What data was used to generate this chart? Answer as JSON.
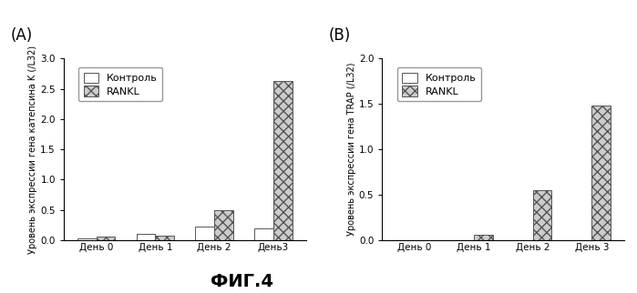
{
  "panel_A": {
    "title": "(A)",
    "ylabel": "Уровень экспрессии гена катепсина K (/L32)",
    "categories": [
      "День 0",
      "День 1",
      "День 2",
      "День3"
    ],
    "control_values": [
      0.03,
      0.1,
      0.22,
      0.19
    ],
    "rankl_values": [
      0.06,
      0.08,
      0.5,
      2.63
    ],
    "ylim": [
      0,
      3.0
    ],
    "yticks": [
      0.0,
      0.5,
      1.0,
      1.5,
      2.0,
      2.5,
      3.0
    ]
  },
  "panel_B": {
    "title": "(B)",
    "ylabel": "Уровень экспрессии гена TRAP (/L32)",
    "categories": [
      "День 0",
      "День 1",
      "День 2",
      "День 3"
    ],
    "control_values": [
      0.0,
      0.0,
      0.0,
      0.0
    ],
    "rankl_values": [
      0.0,
      0.06,
      0.55,
      1.48
    ],
    "ylim": [
      0,
      2.0
    ],
    "yticks": [
      0.0,
      0.5,
      1.0,
      1.5,
      2.0
    ]
  },
  "legend_labels": [
    "Контроль",
    "RANKL"
  ],
  "control_color": "white",
  "control_edgecolor": "#555555",
  "rankl_color": "#cccccc",
  "rankl_edgecolor": "#555555",
  "rankl_hatch": "xxx",
  "fig_title": "ФИГ.4",
  "background_color": "white",
  "bar_width": 0.32,
  "fontsize_label": 7.0,
  "fontsize_tick": 7.5,
  "fontsize_legend": 8,
  "fontsize_panel_title": 12,
  "fontsize_fig_title": 14
}
